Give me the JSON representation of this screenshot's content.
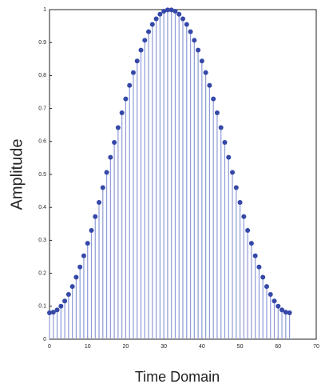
{
  "chart_data": {
    "type": "stem",
    "xlabel": "Time Domain",
    "ylabel": "Amplitude",
    "x": [
      0,
      1,
      2,
      3,
      4,
      5,
      6,
      7,
      8,
      9,
      10,
      11,
      12,
      13,
      14,
      15,
      16,
      17,
      18,
      19,
      20,
      21,
      22,
      23,
      24,
      25,
      26,
      27,
      28,
      29,
      30,
      31,
      32,
      33,
      34,
      35,
      36,
      37,
      38,
      39,
      40,
      41,
      42,
      43,
      44,
      45,
      46,
      47,
      48,
      49,
      50,
      51,
      52,
      53,
      54,
      55,
      56,
      57,
      58,
      59,
      60,
      61,
      62,
      63
    ],
    "series": [
      {
        "color": "#3548a8",
        "stem_color": "#8d9bd6",
        "values": [
          0.08,
          0.082,
          0.089,
          0.1,
          0.116,
          0.136,
          0.16,
          0.188,
          0.219,
          0.253,
          0.291,
          0.33,
          0.372,
          0.415,
          0.46,
          0.506,
          0.552,
          0.597,
          0.642,
          0.687,
          0.729,
          0.77,
          0.809,
          0.844,
          0.877,
          0.907,
          0.933,
          0.955,
          0.972,
          0.986,
          0.995,
          0.999,
          0.999,
          0.995,
          0.986,
          0.972,
          0.955,
          0.933,
          0.907,
          0.877,
          0.844,
          0.809,
          0.77,
          0.729,
          0.687,
          0.642,
          0.597,
          0.552,
          0.506,
          0.46,
          0.415,
          0.372,
          0.33,
          0.291,
          0.253,
          0.219,
          0.188,
          0.16,
          0.136,
          0.116,
          0.1,
          0.089,
          0.082,
          0.08
        ]
      }
    ],
    "xlim": [
      0,
      70
    ],
    "xticks": [
      0,
      10,
      20,
      30,
      40,
      50,
      60,
      70
    ],
    "ylim": [
      0,
      1
    ],
    "yticks": [
      0,
      0.1,
      0.2,
      0.3,
      0.4,
      0.5,
      0.6,
      0.7,
      0.8,
      0.9,
      1
    ]
  }
}
